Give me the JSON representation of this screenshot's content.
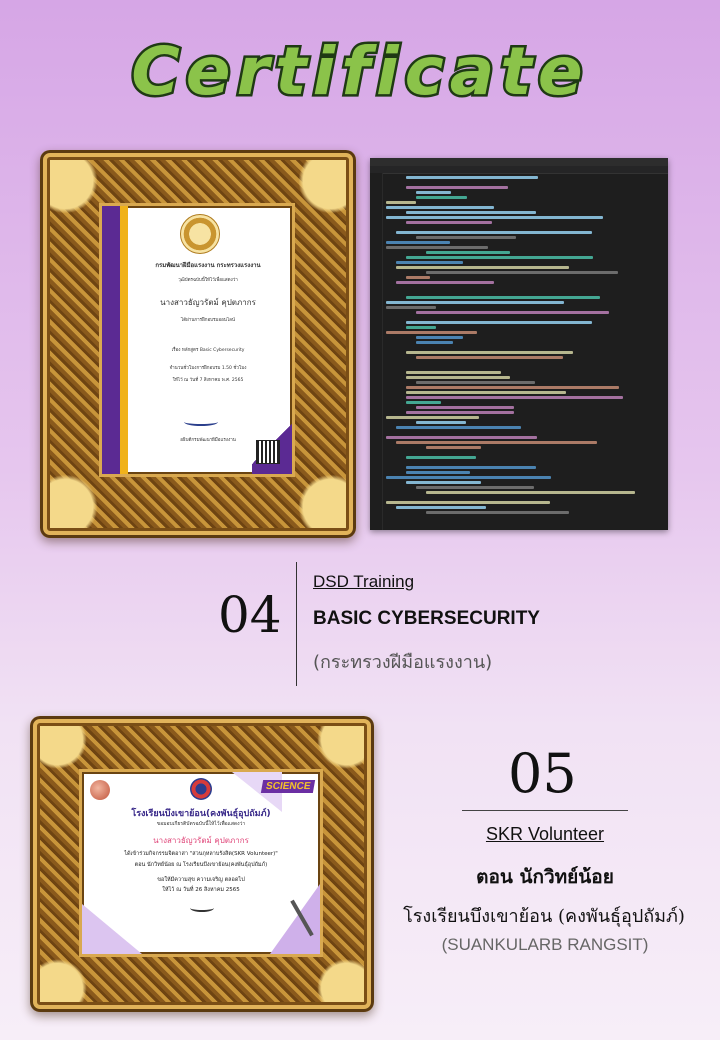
{
  "header": {
    "title": "Certificate"
  },
  "cert_dsd": {
    "issuer": "กรมพัฒนาฝีมือแรงงาน กระทรวงแรงงาน",
    "intro": "วุฒิบัตรฉบับนี้ให้ไว้เพื่อแสดงว่า",
    "name": "นางสาวธัญวรัตม์ คุปตภากร",
    "passed": "ได้ผ่านการฝึกอบรมออนไลน์",
    "course": "เรื่อง หลักสูตร Basic Cybersecurity",
    "hours": "จำนวนชั่วโมงการฝึกอบรม 1.50 ชั่วโมง",
    "date": "ให้ไว้ ณ วันที่ 7 สิงหาคม พ.ศ. 2565",
    "signer": "อธิบดีกรมพัฒนาฝีมือแรงงาน"
  },
  "item04": {
    "number": "04",
    "category": "DSD Training",
    "title": "BASIC CYBERSECURITY",
    "org": "(กระทรวงฝีมือแรงงาน)"
  },
  "cert_skr": {
    "science": "SCIENCE",
    "school": "โรงเรียนบึงเขาย้อน(คงพันธุ์อุปถัมภ์)",
    "intro": "ขอมอบเกียรติบัตรฉบับนี้ให้ไว้เพื่อแสดงว่า",
    "name": "นางสาวธัญวรัตม์ คุปตภากร",
    "activity": "ได้เข้าร่วมกิจกรรมจิตอาสา \"สวนกุหลาบรังสิต(SKR Volunteer)\"",
    "role": "ตอน นักวิทย์น้อย ณ โรงเรียนบึงเขาย้อน(คงพันธุ์อุปถัมภ์)",
    "wish": "ขอให้มีความสุข ความเจริญ ตลอดไป",
    "date": "ให้ไว้ ณ วันที่ 26 สิงหาคม 2565"
  },
  "item05": {
    "number": "05",
    "category": "SKR Volunteer",
    "role": "ตอน นักวิทย์น้อย",
    "school": "โรงเรียนบึงเขาย้อน (คงพันธุ์อุปถัมภ์)",
    "org": "(SUANKULARB RANGSIT)"
  },
  "colors": {
    "title_fill": "#8bc34a",
    "title_stroke": "#1f3a14",
    "cert_purple": "#5b2a93",
    "cert_gold": "#f0b21a",
    "code_bg": "#1e1e1e"
  }
}
